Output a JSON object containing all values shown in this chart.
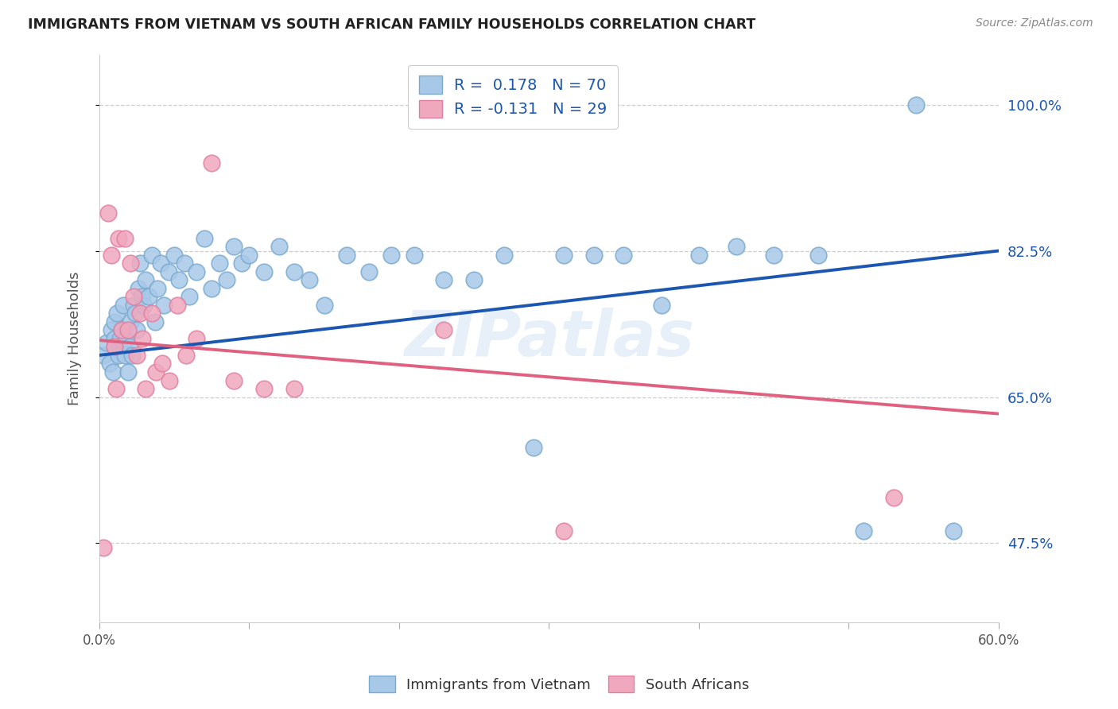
{
  "title": "IMMIGRANTS FROM VIETNAM VS SOUTH AFRICAN FAMILY HOUSEHOLDS CORRELATION CHART",
  "source": "Source: ZipAtlas.com",
  "ylabel": "Family Households",
  "y_tick_vals": [
    0.475,
    0.65,
    0.825,
    1.0
  ],
  "y_tick_labels": [
    "47.5%",
    "65.0%",
    "82.5%",
    "100.0%"
  ],
  "x_range": [
    0.0,
    0.6
  ],
  "y_range": [
    0.38,
    1.06
  ],
  "x_tick_vals": [
    0.0,
    0.1,
    0.2,
    0.3,
    0.4,
    0.5,
    0.6
  ],
  "x_tick_labels": [
    "0.0%",
    "",
    "",
    "",
    "",
    "",
    "60.0%"
  ],
  "legend_label_blue": "R =  0.178   N = 70",
  "legend_label_pink": "R = -0.131   N = 29",
  "blue_line_color": "#1b56b0",
  "pink_line_color": "#e06080",
  "blue_dot_color": "#a8c8e8",
  "pink_dot_color": "#f0a8be",
  "blue_dot_edge": "#7aaad0",
  "pink_dot_edge": "#e080a0",
  "watermark": "ZIPatlas",
  "blue_scatter_x": [
    0.003,
    0.005,
    0.007,
    0.008,
    0.009,
    0.01,
    0.01,
    0.01,
    0.012,
    0.013,
    0.014,
    0.015,
    0.016,
    0.017,
    0.018,
    0.019,
    0.02,
    0.021,
    0.022,
    0.023,
    0.024,
    0.025,
    0.026,
    0.027,
    0.028,
    0.03,
    0.031,
    0.033,
    0.035,
    0.037,
    0.039,
    0.041,
    0.043,
    0.046,
    0.05,
    0.053,
    0.057,
    0.06,
    0.065,
    0.07,
    0.075,
    0.08,
    0.085,
    0.09,
    0.095,
    0.1,
    0.11,
    0.12,
    0.13,
    0.14,
    0.15,
    0.165,
    0.18,
    0.195,
    0.21,
    0.23,
    0.25,
    0.27,
    0.29,
    0.31,
    0.33,
    0.35,
    0.375,
    0.4,
    0.425,
    0.45,
    0.48,
    0.51,
    0.545,
    0.57
  ],
  "blue_scatter_y": [
    0.7,
    0.715,
    0.69,
    0.73,
    0.68,
    0.72,
    0.71,
    0.74,
    0.75,
    0.7,
    0.72,
    0.73,
    0.76,
    0.7,
    0.72,
    0.68,
    0.71,
    0.74,
    0.7,
    0.76,
    0.75,
    0.73,
    0.78,
    0.81,
    0.77,
    0.76,
    0.79,
    0.77,
    0.82,
    0.74,
    0.78,
    0.81,
    0.76,
    0.8,
    0.82,
    0.79,
    0.81,
    0.77,
    0.8,
    0.84,
    0.78,
    0.81,
    0.79,
    0.83,
    0.81,
    0.82,
    0.8,
    0.83,
    0.8,
    0.79,
    0.76,
    0.82,
    0.8,
    0.82,
    0.82,
    0.79,
    0.79,
    0.82,
    0.59,
    0.82,
    0.82,
    0.82,
    0.76,
    0.82,
    0.83,
    0.82,
    0.82,
    0.49,
    1.0,
    0.49
  ],
  "pink_scatter_x": [
    0.003,
    0.006,
    0.008,
    0.01,
    0.011,
    0.013,
    0.015,
    0.017,
    0.019,
    0.021,
    0.023,
    0.025,
    0.027,
    0.029,
    0.031,
    0.035,
    0.038,
    0.042,
    0.047,
    0.052,
    0.058,
    0.065,
    0.075,
    0.09,
    0.11,
    0.13,
    0.23,
    0.31,
    0.53
  ],
  "pink_scatter_y": [
    0.47,
    0.87,
    0.82,
    0.71,
    0.66,
    0.84,
    0.73,
    0.84,
    0.73,
    0.81,
    0.77,
    0.7,
    0.75,
    0.72,
    0.66,
    0.75,
    0.68,
    0.69,
    0.67,
    0.76,
    0.7,
    0.72,
    0.93,
    0.67,
    0.66,
    0.66,
    0.73,
    0.49,
    0.53
  ],
  "blue_trend_x": [
    0.0,
    0.6
  ],
  "blue_trend_y": [
    0.7,
    0.825
  ],
  "pink_trend_x": [
    0.0,
    0.6
  ],
  "pink_trend_y": [
    0.718,
    0.63
  ]
}
